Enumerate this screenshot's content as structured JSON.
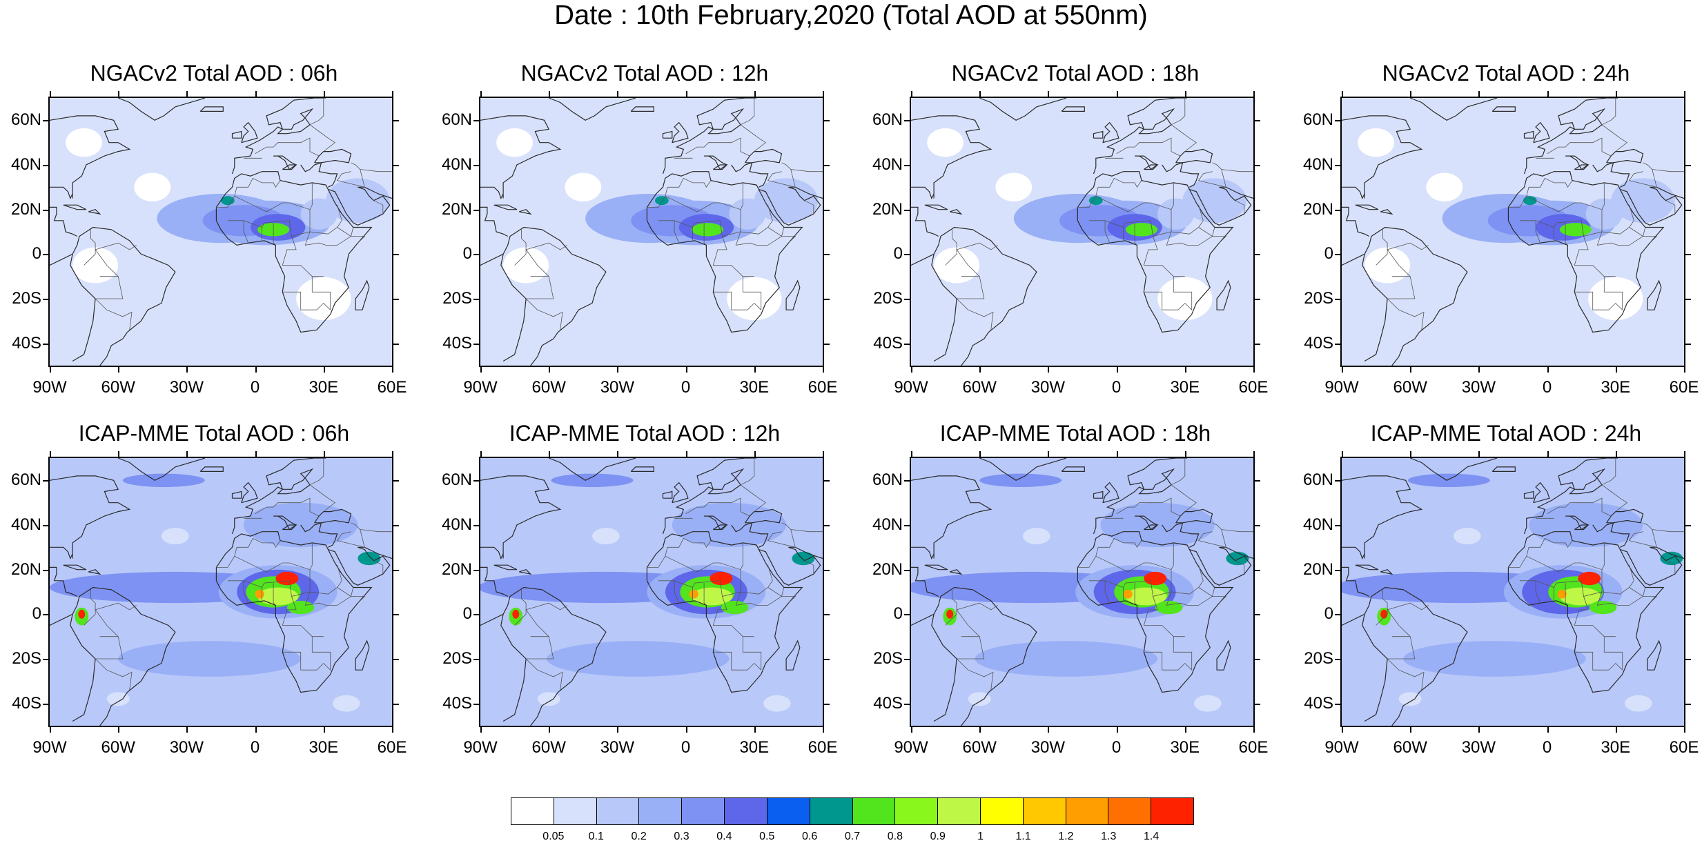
{
  "title": "Date : 10th February,2020 (Total AOD at 550nm)",
  "panels": [
    {
      "title": "NGACv2 Total AOD : 06h",
      "model": "NGACv2",
      "hour": 6
    },
    {
      "title": "NGACv2 Total AOD : 12h",
      "model": "NGACv2",
      "hour": 12
    },
    {
      "title": "NGACv2 Total AOD : 18h",
      "model": "NGACv2",
      "hour": 18
    },
    {
      "title": "NGACv2 Total AOD : 24h",
      "model": "NGACv2",
      "hour": 24
    },
    {
      "title": "ICAP-MME Total AOD : 06h",
      "model": "ICAP-MME",
      "hour": 6
    },
    {
      "title": "ICAP-MME Total AOD : 12h",
      "model": "ICAP-MME",
      "hour": 12
    },
    {
      "title": "ICAP-MME Total AOD : 18h",
      "model": "ICAP-MME",
      "hour": 18
    },
    {
      "title": "ICAP-MME Total AOD : 24h",
      "model": "ICAP-MME",
      "hour": 24
    }
  ],
  "axes": {
    "lon_range": [
      -90,
      60
    ],
    "lat_range": [
      -50,
      70
    ],
    "x_ticks": [
      {
        "value": -90,
        "label": "90W"
      },
      {
        "value": -60,
        "label": "60W"
      },
      {
        "value": -30,
        "label": "30W"
      },
      {
        "value": 0,
        "label": "0"
      },
      {
        "value": 30,
        "label": "30E"
      },
      {
        "value": 60,
        "label": "60E"
      }
    ],
    "y_ticks": [
      {
        "value": 60,
        "label": "60N"
      },
      {
        "value": 40,
        "label": "40N"
      },
      {
        "value": 20,
        "label": "20N"
      },
      {
        "value": 0,
        "label": "0"
      },
      {
        "value": -20,
        "label": "20S"
      },
      {
        "value": -40,
        "label": "40S"
      }
    ]
  },
  "colorbar": {
    "colors": [
      "#ffffff",
      "#d8e1fb",
      "#b8c8f9",
      "#9ab0f6",
      "#7d92f2",
      "#5e67ea",
      "#0a5ff0",
      "#00978f",
      "#52e41d",
      "#89f71c",
      "#bff746",
      "#ffff00",
      "#ffc800",
      "#ff9e00",
      "#ff7000",
      "#ff2200"
    ],
    "levels": [
      "0.05",
      "0.1",
      "0.2",
      "0.3",
      "0.4",
      "0.5",
      "0.6",
      "0.7",
      "0.8",
      "0.9",
      "1",
      "1.1",
      "1.2",
      "1.3",
      "1.4"
    ]
  }
}
